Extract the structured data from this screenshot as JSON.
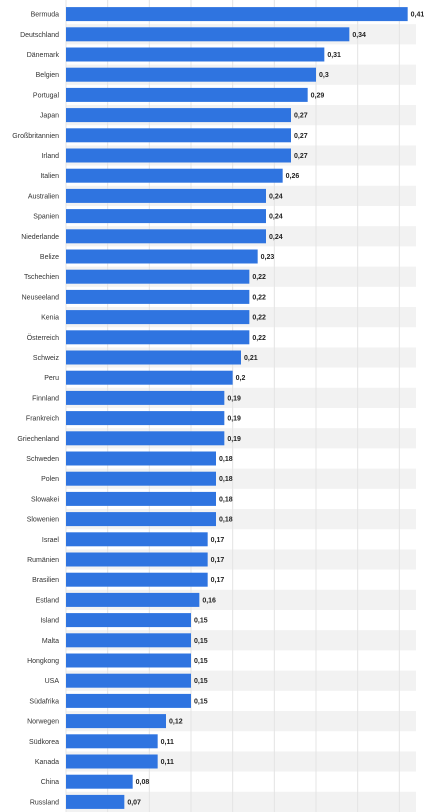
{
  "chart_data": {
    "type": "bar",
    "orientation": "horizontal",
    "title": "",
    "xlabel": "",
    "ylabel": "",
    "xlim": [
      0,
      0.42
    ],
    "grid": true,
    "bar_color": "#2f74e0",
    "band_color": "#f2f2f2",
    "grid_color": "#e4e4e4",
    "categories": [
      "Bermuda",
      "Deutschland",
      "Dänemark",
      "Belgien",
      "Portugal",
      "Japan",
      "Großbritannien",
      "Irland",
      "Italien",
      "Australien",
      "Spanien",
      "Niederlande",
      "Belize",
      "Tschechien",
      "Neuseeland",
      "Kenia",
      "Österreich",
      "Schweiz",
      "Peru",
      "Finnland",
      "Frankreich",
      "Griechenland",
      "Schweden",
      "Polen",
      "Slowakei",
      "Slowenien",
      "Israel",
      "Rumänien",
      "Brasilien",
      "Estland",
      "Island",
      "Malta",
      "Hongkong",
      "USA",
      "Südafrika",
      "Norwegen",
      "Südkorea",
      "Kanada",
      "China",
      "Russland"
    ],
    "values": [
      0.41,
      0.34,
      0.31,
      0.3,
      0.29,
      0.27,
      0.27,
      0.27,
      0.26,
      0.24,
      0.24,
      0.24,
      0.23,
      0.22,
      0.22,
      0.22,
      0.22,
      0.21,
      0.2,
      0.19,
      0.19,
      0.19,
      0.18,
      0.18,
      0.18,
      0.18,
      0.17,
      0.17,
      0.17,
      0.16,
      0.15,
      0.15,
      0.15,
      0.15,
      0.15,
      0.12,
      0.11,
      0.11,
      0.08,
      0.07
    ],
    "value_labels": [
      "0,41",
      "0,34",
      "0,31",
      "0,3",
      "0,29",
      "0,27",
      "0,27",
      "0,27",
      "0,26",
      "0,24",
      "0,24",
      "0,24",
      "0,23",
      "0,22",
      "0,22",
      "0,22",
      "0,22",
      "0,21",
      "0,2",
      "0,19",
      "0,19",
      "0,19",
      "0,18",
      "0,18",
      "0,18",
      "0,18",
      "0,17",
      "0,17",
      "0,17",
      "0,16",
      "0,15",
      "0,15",
      "0,15",
      "0,15",
      "0,15",
      "0,12",
      "0,11",
      "0,11",
      "0,08",
      "0,07"
    ]
  }
}
